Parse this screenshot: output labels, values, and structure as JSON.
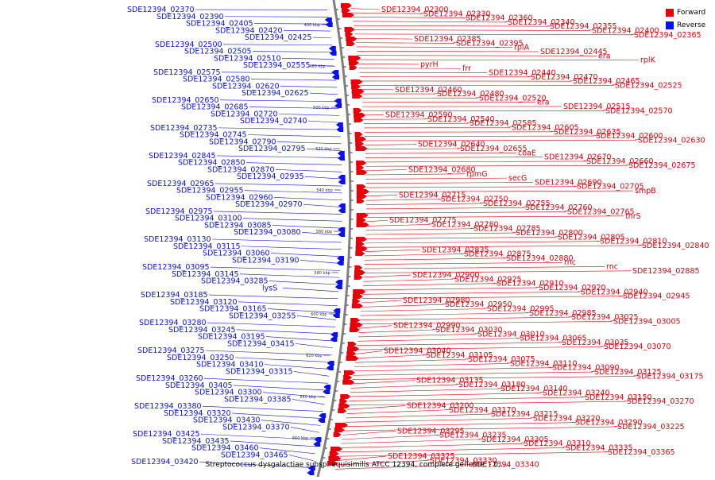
{
  "caption": "Streptococcus dysgalactiae subsp. equisimilis ATCC 12394, complete genome. - 0.....",
  "legend": {
    "forward_label": "Forward",
    "reverse_label": "Reverse",
    "forward_color": "#e8000b",
    "reverse_color": "#0a10f0"
  },
  "colors": {
    "forward": "#e8000b",
    "reverse": "#0a10f0",
    "backbone": "#808080"
  },
  "ticks": [
    "400 kbp",
    "480 kbp",
    "500 kbp",
    "520 kbp",
    "540 kbp",
    "560 kbp",
    "580 kbp",
    "600 kbp",
    "620 kbp",
    "640 kbp",
    "660 kbp"
  ],
  "reverse_labels": [
    "SDE12394_02370",
    "SDE12394_02390",
    "SDE12394_02405",
    "SDE12394_02420",
    "SDE12394_02425",
    "SDE12394_02500",
    "SDE12394_02505",
    "SDE12394_02510",
    "SDE12394_02555",
    "SDE12394_02575",
    "SDE12394_02580",
    "SDE12394_02620",
    "SDE12394_02625",
    "SDE12394_02650",
    "SDE12394_02685",
    "SDE12394_02720",
    "SDE12394_02740",
    "SDE12394_02735",
    "SDE12394_02745",
    "SDE12394_02790",
    "SDE12394_02795",
    "SDE12394_02845",
    "SDE12394_02850",
    "SDE12394_02870",
    "SDE12394_02935",
    "SDE12394_02965",
    "SDE12394_02955",
    "SDE12394_02960",
    "SDE12394_02970",
    "SDE12394_02975",
    "SDE12394_03100",
    "SDE12394_03085",
    "SDE12394_03080",
    "SDE12394_03130",
    "SDE12394_03115",
    "SDE12394_03060",
    "SDE12394_03190",
    "SDE12394_03095",
    "SDE12394_03145",
    "SDE12394_03285",
    "lysS",
    "SDE12394_03185",
    "SDE12394_03120",
    "SDE12394_03165",
    "SDE12394_03255",
    "SDE12394_03280",
    "SDE12394_03245",
    "SDE12394_03195",
    "SDE12394_03415",
    "SDE12394_03275",
    "SDE12394_03250",
    "SDE12394_03410",
    "SDE12394_03315",
    "SDE12394_03260",
    "SDE12394_03405",
    "SDE12394_03300",
    "SDE12394_03385",
    "SDE12394_03380",
    "SDE12394_03320",
    "SDE12394_03430",
    "SDE12394_03370",
    "SDE12394_03425",
    "SDE12394_03435",
    "SDE12394_03460",
    "SDE12394_03465",
    "SDE12394_03420"
  ],
  "forward_labels": [
    "SDE12394_02300",
    "SDE12394_02330",
    "SDE12394_02360",
    "SDE12394_02340",
    "SDE12394_02355",
    "SDE12394_02400",
    "SDE12394_02365",
    "SDE12394_02385",
    "SDE12394_02395",
    "rplA",
    "SDE12394_02445",
    "era",
    "rplK",
    "pyrH",
    "frr",
    "SDE12394_02440",
    "SDE12394_02470",
    "SDE12394_02465",
    "SDE12394_02525",
    "SDE12394_02460",
    "SDE12394_02480",
    "SDE12394_02520",
    "era",
    "SDE12394_02515",
    "SDE12394_02570",
    "SDE12394_02590",
    "SDE12394_02540",
    "SDE12394_02585",
    "SDE12394_02605",
    "SDE12394_02635",
    "SDE12394_02600",
    "SDE12394_02630",
    "SDE12394_02640",
    "SDE12394_02655",
    "coaE",
    "SDE12394_02670",
    "SDE12394_02660",
    "SDE12394_02675",
    "SDE12394_02680",
    "rpmG",
    "secG",
    "SDE12394_02690",
    "SDE12394_02705",
    "smpB",
    "SDE12394_02715",
    "SDE12394_02750",
    "SDE12394_02755",
    "SDE12394_02760",
    "SDE12394_02765",
    "thrS",
    "SDE12394_02775",
    "SDE12394_02780",
    "SDE12394_02785",
    "SDE12394_02800",
    "SDE12394_02805",
    "SDE12394_02810",
    "SDE12394_02840",
    "SDE12394_02835",
    "SDE12394_02875",
    "SDE12394_02880",
    "rnc",
    "rnc",
    "SDE12394_02885",
    "SDE12394_02900",
    "SDE12394_02925",
    "SDE12394_02910",
    "SDE12394_02920",
    "SDE12394_02940",
    "SDE12394_02945",
    "SDE12394_02980",
    "SDE12394_02950",
    "SDE12394_02995",
    "SDE12394_02985",
    "SDE12394_03025",
    "SDE12394_03005",
    "SDE12394_02990",
    "SDE12394_03030",
    "SDE12394_03010",
    "SDE12394_03065",
    "SDE12394_03035",
    "SDE12394_03070",
    "SDE12394_03040",
    "SDE12394_03105",
    "SDE12394_03075",
    "SDE12394_03110",
    "SDE12394_03090",
    "SDE12394_03125",
    "SDE12394_03175",
    "SDE12394_03135",
    "SDE12394_03180",
    "SDE12394_03140",
    "SDE12394_03240",
    "SDE12394_03150",
    "SDE12394_03270",
    "SDE12394_03200",
    "SDE12394_03170",
    "SDE12394_03215",
    "SDE12394_03220",
    "SDE12394_03290",
    "SDE12394_03225",
    "SDE12394_03295",
    "SDE12394_03235",
    "SDE12394_03305",
    "SDE12394_03310",
    "SDE12394_03335",
    "SDE12394_03365",
    "SDE12394_03325",
    "SDE12394_03330",
    "SDE12394_03340"
  ]
}
